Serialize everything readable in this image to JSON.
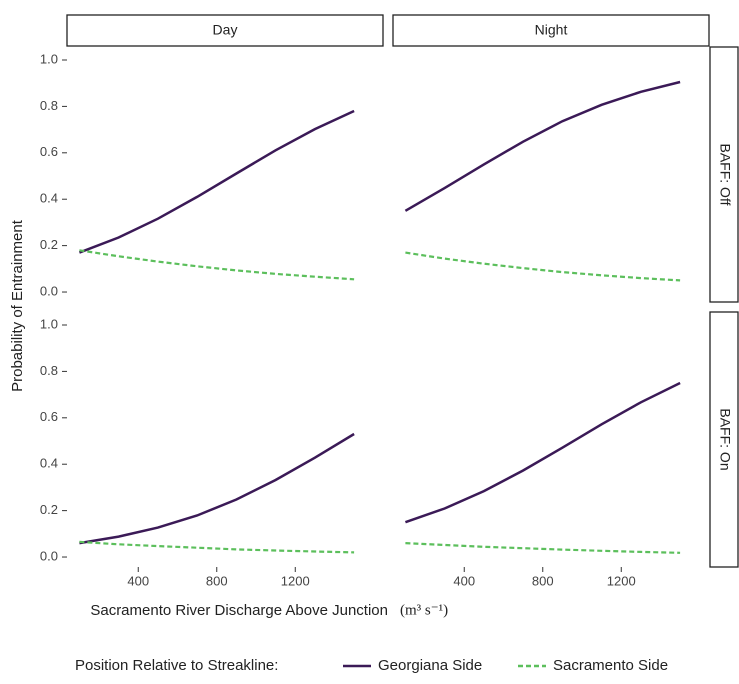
{
  "chart_data": {
    "type": "line",
    "x_label": "Sacramento River Discharge Above Junction",
    "x_unit": "(m³ s⁻¹)",
    "y_label": "Probability of Entrainment",
    "legend_title": "Position Relative to Streakline:",
    "columns": [
      "Day",
      "Night"
    ],
    "rows": [
      "BAFF: Off",
      "BAFF: On"
    ],
    "xlim": [
      37,
      1647
    ],
    "xticks": [
      400,
      800,
      1200
    ],
    "ylim": [
      -0.043,
      1.056
    ],
    "yticks": [
      {
        "value": 0,
        "label": "0.0"
      },
      {
        "value": 0.2,
        "label": "0.2"
      },
      {
        "value": 0.4,
        "label": "0.4"
      },
      {
        "value": 0.6,
        "label": "0.6"
      },
      {
        "value": 0.8,
        "label": "0.8"
      },
      {
        "value": 1,
        "label": "1.0"
      }
    ],
    "x": [
      100,
      300,
      500,
      700,
      900,
      1100,
      1300,
      1500
    ],
    "legend": [
      {
        "name": "Georgiana Side",
        "color": "#3b1a57",
        "linestyle": "solid"
      },
      {
        "name": "Sacramento Side",
        "color": "#5cbf5c",
        "linestyle": "dashed"
      }
    ],
    "panels": [
      {
        "series": [
          {
            "values": [
              0.17,
              0.235,
              0.316,
              0.41,
              0.511,
              0.611,
              0.702,
              0.78
            ]
          },
          {
            "values": [
              0.18,
              0.154,
              0.131,
              0.111,
              0.093,
              0.078,
              0.066,
              0.055
            ]
          }
        ]
      },
      {
        "series": [
          {
            "values": [
              0.35,
              0.448,
              0.55,
              0.648,
              0.736,
              0.807,
              0.863,
              0.905
            ]
          },
          {
            "values": [
              0.17,
              0.144,
              0.122,
              0.103,
              0.086,
              0.072,
              0.06,
              0.05
            ]
          }
        ]
      },
      {
        "series": [
          {
            "values": [
              0.06,
              0.088,
              0.127,
              0.179,
              0.248,
              0.332,
              0.428,
              0.53
            ]
          },
          {
            "values": [
              0.065,
              0.055,
              0.047,
              0.04,
              0.033,
              0.028,
              0.024,
              0.02
            ]
          }
        ]
      },
      {
        "series": [
          {
            "values": [
              0.15,
              0.209,
              0.284,
              0.373,
              0.471,
              0.572,
              0.667,
              0.75
            ]
          },
          {
            "values": [
              0.06,
              0.052,
              0.044,
              0.038,
              0.032,
              0.027,
              0.022,
              0.018
            ]
          }
        ]
      }
    ]
  }
}
